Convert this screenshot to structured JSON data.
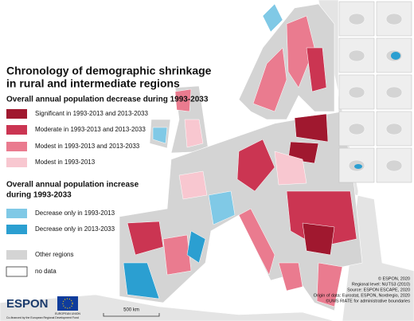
{
  "title_lines": [
    "Chronology of demographic shrinkage",
    "in rural and intermediate regions"
  ],
  "decrease": {
    "heading": "Overall annual population decrease during 1993-2033",
    "items": [
      {
        "label": "Significant in 1993-2013 and 2013-2033",
        "color": "#a0182f"
      },
      {
        "label": "Moderate in 1993-2013 and 2013-2033",
        "color": "#cb3552"
      },
      {
        "label": "Modest in 1993-2013 and 2013-2033",
        "color": "#ea7b8f"
      },
      {
        "label": "Modest in 1993-2013",
        "color": "#f8c7d0"
      }
    ]
  },
  "increase": {
    "heading_lines": [
      "Overall annual population increase",
      "during 1993-2033"
    ],
    "items": [
      {
        "label": "Decrease only in 1993-2013",
        "color": "#80c9e6"
      },
      {
        "label": "Decrease only in 2013-2033",
        "color": "#2b9fd1"
      }
    ]
  },
  "other": {
    "items": [
      {
        "label": "Other regions",
        "color": "#d4d4d4"
      },
      {
        "label": "no data",
        "color": "#ffffff"
      }
    ]
  },
  "credits": [
    "© ESPON, 2020",
    "Regional level: NUTS3 (2010)",
    "Source: ESPON ESCAPE, 2020",
    "Origin of data: Eurostat, ESPON, Nordregio, 2020",
    "©UMS RIATE for administrative boundaries"
  ],
  "scale_label": "500 km",
  "logos": {
    "espon": "ESPON",
    "eu": "EUROPEAN UNION",
    "funding": "Co-financed by the European Regional Development Fund"
  }
}
